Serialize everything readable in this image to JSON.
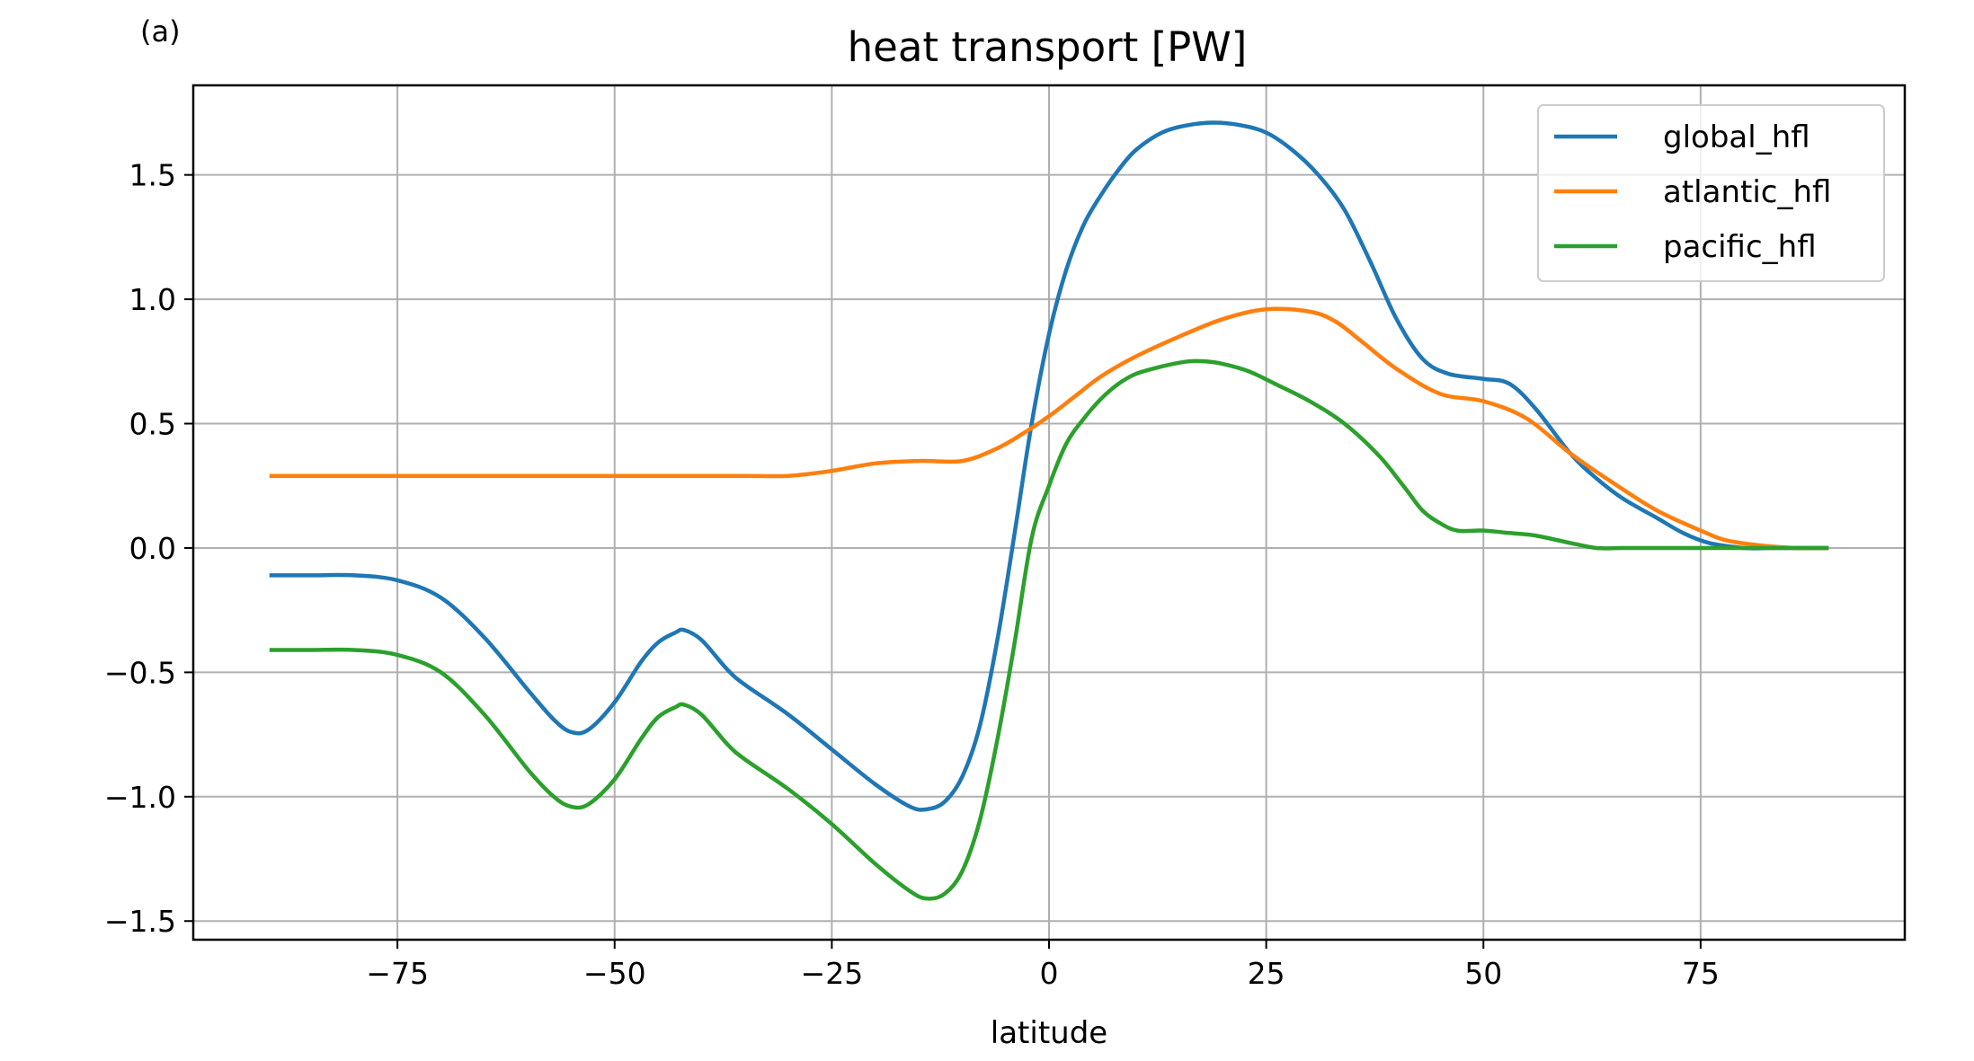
{
  "chart_data": {
    "type": "line",
    "panel_label": "(a)",
    "title": "heat transport [PW]",
    "xlabel": "latitude",
    "ylabel": "",
    "xlim": [
      -98.5,
      98.5
    ],
    "ylim": [
      -1.575,
      1.86
    ],
    "xticks": [
      -75,
      -50,
      -25,
      0,
      25,
      50,
      75
    ],
    "xtick_labels": [
      "−75",
      "−50",
      "−25",
      "0",
      "25",
      "50",
      "75"
    ],
    "yticks": [
      -1.5,
      -1.0,
      -0.5,
      0.0,
      0.5,
      1.0,
      1.5
    ],
    "ytick_labels": [
      "−1.5",
      "−1.0",
      "−0.5",
      "0.0",
      "0.5",
      "1.0",
      "1.5"
    ],
    "grid": true,
    "legend_position": "top-right",
    "series": [
      {
        "name": "global_hfl",
        "color": "#1f77b4",
        "x": [
          -89.5,
          -85,
          -80,
          -75,
          -70,
          -65,
          -60,
          -57,
          -55,
          -53,
          -50,
          -47,
          -45,
          -43,
          -42,
          -40,
          -37,
          -35,
          -30,
          -25,
          -20,
          -16,
          -14,
          -12,
          -10,
          -8,
          -6,
          -4,
          -2,
          0,
          2,
          4,
          6,
          8,
          10,
          13,
          16,
          19,
          22,
          25,
          28,
          31,
          34,
          37,
          40,
          43,
          46,
          50,
          53,
          56,
          60,
          63,
          66,
          70,
          73,
          76,
          80,
          83,
          86,
          89.5
        ],
        "y": [
          -0.11,
          -0.11,
          -0.11,
          -0.13,
          -0.2,
          -0.36,
          -0.57,
          -0.69,
          -0.74,
          -0.73,
          -0.62,
          -0.46,
          -0.38,
          -0.34,
          -0.33,
          -0.37,
          -0.49,
          -0.55,
          -0.67,
          -0.81,
          -0.95,
          -1.04,
          -1.05,
          -1.02,
          -0.92,
          -0.72,
          -0.38,
          0.05,
          0.5,
          0.86,
          1.12,
          1.3,
          1.42,
          1.52,
          1.6,
          1.67,
          1.7,
          1.71,
          1.7,
          1.67,
          1.6,
          1.5,
          1.36,
          1.15,
          0.92,
          0.76,
          0.7,
          0.68,
          0.66,
          0.56,
          0.38,
          0.28,
          0.2,
          0.12,
          0.06,
          0.02,
          0.0,
          0.0,
          0.0,
          0.0
        ]
      },
      {
        "name": "atlantic_hfl",
        "color": "#ff7f0e",
        "x": [
          -89.5,
          -80,
          -70,
          -60,
          -50,
          -40,
          -35,
          -30,
          -25,
          -20,
          -15,
          -10,
          -6,
          -3,
          0,
          3,
          6,
          10,
          15,
          20,
          25,
          30,
          33,
          36,
          40,
          45,
          50,
          55,
          60,
          65,
          70,
          75,
          78,
          82,
          86,
          89.5
        ],
        "y": [
          0.29,
          0.29,
          0.29,
          0.29,
          0.29,
          0.29,
          0.29,
          0.29,
          0.31,
          0.34,
          0.35,
          0.35,
          0.4,
          0.46,
          0.53,
          0.61,
          0.69,
          0.77,
          0.85,
          0.92,
          0.96,
          0.95,
          0.91,
          0.83,
          0.72,
          0.62,
          0.59,
          0.52,
          0.38,
          0.26,
          0.15,
          0.07,
          0.03,
          0.01,
          0.0,
          0.0
        ]
      },
      {
        "name": "pacific_hfl",
        "color": "#2ca02c",
        "x": [
          -89.5,
          -85,
          -80,
          -75,
          -70,
          -65,
          -60,
          -57,
          -55,
          -53,
          -50,
          -47,
          -45,
          -43,
          -42,
          -40,
          -37,
          -35,
          -30,
          -25,
          -20,
          -16,
          -14,
          -12,
          -10,
          -8,
          -6,
          -4,
          -2,
          0,
          2,
          4,
          6,
          8,
          10,
          13,
          16,
          18,
          20,
          23,
          26,
          30,
          34,
          38,
          41,
          43,
          45,
          47,
          50,
          53,
          56,
          60,
          63,
          66,
          70,
          75,
          80,
          85,
          89.5
        ],
        "y": [
          -0.41,
          -0.41,
          -0.41,
          -0.43,
          -0.5,
          -0.67,
          -0.89,
          -1.0,
          -1.04,
          -1.03,
          -0.93,
          -0.77,
          -0.68,
          -0.64,
          -0.63,
          -0.67,
          -0.79,
          -0.85,
          -0.97,
          -1.11,
          -1.27,
          -1.38,
          -1.41,
          -1.39,
          -1.3,
          -1.1,
          -0.78,
          -0.39,
          0.04,
          0.25,
          0.42,
          0.52,
          0.6,
          0.66,
          0.7,
          0.73,
          0.75,
          0.75,
          0.74,
          0.71,
          0.66,
          0.59,
          0.5,
          0.37,
          0.24,
          0.15,
          0.1,
          0.07,
          0.07,
          0.06,
          0.05,
          0.02,
          0.0,
          0.0,
          0.0,
          0.0,
          0.0,
          0.0,
          0.0
        ]
      }
    ]
  }
}
